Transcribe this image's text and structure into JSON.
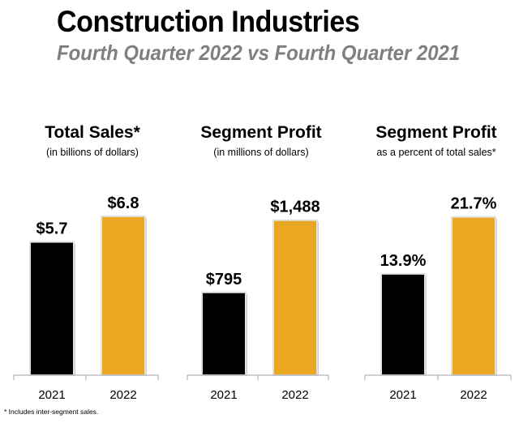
{
  "header": {
    "title": "Construction Industries",
    "subtitle": "Fourth Quarter 2022 vs Fourth Quarter 2021"
  },
  "colors": {
    "prior_year": "#000000",
    "current_year": "#EAA722",
    "axis": "#a6a6a6"
  },
  "footnote": "* Includes inter-segment sales.",
  "chart_data": [
    {
      "type": "bar",
      "title": "Total Sales*",
      "subtitle": "(in billions of dollars)",
      "categories": [
        "2021",
        "2022"
      ],
      "values": [
        5.7,
        6.8
      ],
      "value_labels": [
        "$5.7",
        "$6.8"
      ],
      "ylim": [
        0,
        7.8
      ]
    },
    {
      "type": "bar",
      "title": "Segment Profit",
      "subtitle": "(in millions of dollars)",
      "categories": [
        "2021",
        "2022"
      ],
      "values": [
        795,
        1488
      ],
      "value_labels": [
        "$795",
        "$1,488"
      ],
      "ylim": [
        0,
        1750
      ]
    },
    {
      "type": "bar",
      "title": "Segment Profit",
      "subtitle": "as a percent of total sales*",
      "categories": [
        "2021",
        "2022"
      ],
      "values": [
        13.9,
        21.7
      ],
      "value_labels": [
        "13.9%",
        "21.7%"
      ],
      "ylim": [
        0,
        25
      ]
    }
  ]
}
